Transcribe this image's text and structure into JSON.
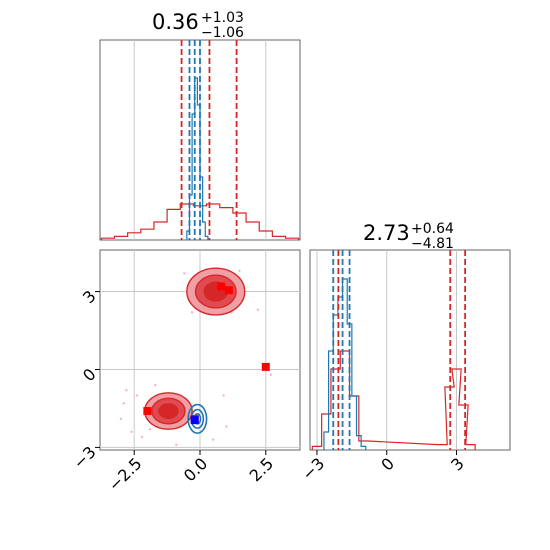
{
  "chart_data": {
    "type": "corner",
    "colors": {
      "red": "#d62728",
      "red_light": "#f0a0a4",
      "red_mid": "#e04a50",
      "blue": "#1f77b4",
      "marker_blue": "#0000ff",
      "marker_red": "#ff0000",
      "grid": "#c8c8c8",
      "pink_scatter": "#f2b6c6"
    },
    "titles": {
      "p1": {
        "value": "0.36",
        "plus": "+1.03",
        "minus": "−1.06"
      },
      "p2": {
        "value": "2.73",
        "plus": "+0.64",
        "minus": "−4.81"
      }
    },
    "axes": {
      "x1": {
        "range": [
          -3.8,
          3.8
        ],
        "ticks": [
          -2.5,
          0.0,
          2.5
        ],
        "tick_labels": [
          "−2.5",
          "0.0",
          "2.5"
        ]
      },
      "x2": {
        "range": [
          -3.3,
          5.3
        ],
        "ticks": [
          -3,
          0,
          3
        ],
        "tick_labels": [
          "−3",
          "0",
          "3"
        ]
      },
      "y2": {
        "range": [
          -3.1,
          4.6
        ],
        "ticks": [
          -3,
          0,
          3
        ],
        "tick_labels": [
          "−3",
          "0",
          "3"
        ]
      }
    },
    "hist_p1": {
      "blue_x": [
        -0.45,
        -0.35,
        -0.25,
        -0.15,
        -0.05,
        0.05,
        0.15,
        0.25
      ],
      "blue_y": [
        0.05,
        0.25,
        0.7,
        0.9,
        0.75,
        0.35,
        0.1,
        0.02
      ],
      "red_x": [
        -3.5,
        -3.0,
        -2.5,
        -2.0,
        -1.5,
        -1.0,
        -0.5,
        0.0,
        0.5,
        1.0,
        1.5,
        2.0,
        2.5,
        3.0,
        3.5
      ],
      "red_y": [
        0.01,
        0.02,
        0.04,
        0.06,
        0.1,
        0.17,
        0.2,
        0.19,
        0.2,
        0.18,
        0.15,
        0.1,
        0.05,
        0.02,
        0.01
      ],
      "red_quantiles": [
        -0.7,
        0.36,
        1.39
      ],
      "blue_quantiles": [
        -0.4,
        -0.2,
        0.0
      ]
    },
    "hist_p2": {
      "blue_x": [
        -2.6,
        -2.4,
        -2.2,
        -2.0,
        -1.8,
        -1.6,
        -1.4,
        -1.2,
        -1.0
      ],
      "blue_y": [
        0.1,
        0.55,
        0.75,
        0.85,
        0.95,
        0.7,
        0.3,
        0.08,
        0.02
      ],
      "red_x": [
        -3.0,
        -2.6,
        -2.2,
        -1.8,
        -1.4,
        -1.0,
        2.4,
        2.7,
        3.0,
        3.3,
        3.6
      ],
      "red_y": [
        0.02,
        0.2,
        0.45,
        0.55,
        0.3,
        0.05,
        0.03,
        0.35,
        0.45,
        0.25,
        0.03
      ],
      "red_quantiles": [
        -2.08,
        2.73,
        3.37
      ],
      "blue_quantiles": [
        -2.3,
        -1.9,
        -1.6
      ]
    },
    "joint": {
      "red_blob_upper": {
        "center": [
          0.6,
          3.0
        ],
        "sx": 1.1,
        "sy": 0.9
      },
      "red_blob_lower": {
        "center": [
          -1.2,
          -1.6
        ],
        "sx": 0.9,
        "sy": 0.7
      },
      "blue_blob": {
        "center": [
          -0.1,
          -1.9
        ],
        "sx": 0.35,
        "sy": 0.55
      },
      "markers_red": [
        [
          0.8,
          3.2
        ],
        [
          1.1,
          3.05
        ],
        [
          2.5,
          0.1
        ],
        [
          -2.0,
          -1.6
        ],
        [
          -0.2,
          -1.9
        ]
      ],
      "markers_blue": [
        [
          -0.2,
          -1.95
        ]
      ]
    }
  }
}
